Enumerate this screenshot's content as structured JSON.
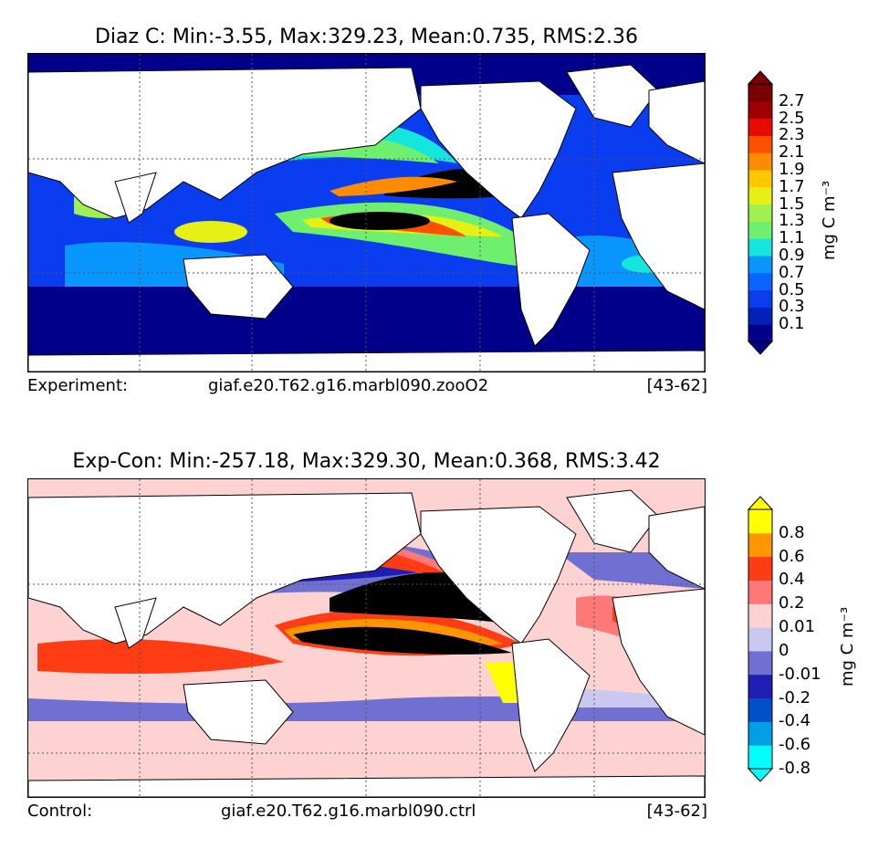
{
  "panel1": {
    "title": "Diaz C: Min:-3.55, Max:329.23, Mean:0.735, RMS:2.36",
    "footer_label": "Experiment:",
    "footer_case": "giaf.e20.T62.g16.marbl090.zooO2",
    "footer_years": "[43-62]",
    "unit": "mg C m⁻³",
    "colorbar": {
      "colors": [
        "#00008b",
        "#0022b8",
        "#0a3cf0",
        "#0a64ff",
        "#0a96ff",
        "#14e6dc",
        "#6ef06e",
        "#a0f050",
        "#e6f014",
        "#ffc800",
        "#ff8c00",
        "#ff5000",
        "#e60a00",
        "#a00000",
        "#7a0000"
      ],
      "ticks": [
        "2.7",
        "2.5",
        "2.3",
        "2.1",
        "1.9",
        "1.7",
        "1.5",
        "1.3",
        "1.1",
        "0.9",
        "0.7",
        "0.5",
        "0.3",
        "0.1"
      ]
    }
  },
  "panel2": {
    "title": "Exp-Con: Min:-257.18, Max:329.30, Mean:0.368, RMS:3.42",
    "footer_label": "Control:",
    "footer_case": "giaf.e20.T62.g16.marbl090.ctrl",
    "footer_years": "[43-62]",
    "unit": "mg C m⁻³",
    "colorbar": {
      "colors": [
        "#00ffff",
        "#00a0e6",
        "#0050c8",
        "#1e1eb4",
        "#7070d2",
        "#c8c8f0",
        "#ffd2d2",
        "#ff7878",
        "#ff3c14",
        "#ff9600",
        "#ffff00"
      ],
      "ticks": [
        "0.8",
        "0.6",
        "0.4",
        "0.2",
        "0.01",
        "0",
        "-0.01",
        "-0.2",
        "-0.4",
        "-0.6",
        "-0.8"
      ]
    }
  }
}
